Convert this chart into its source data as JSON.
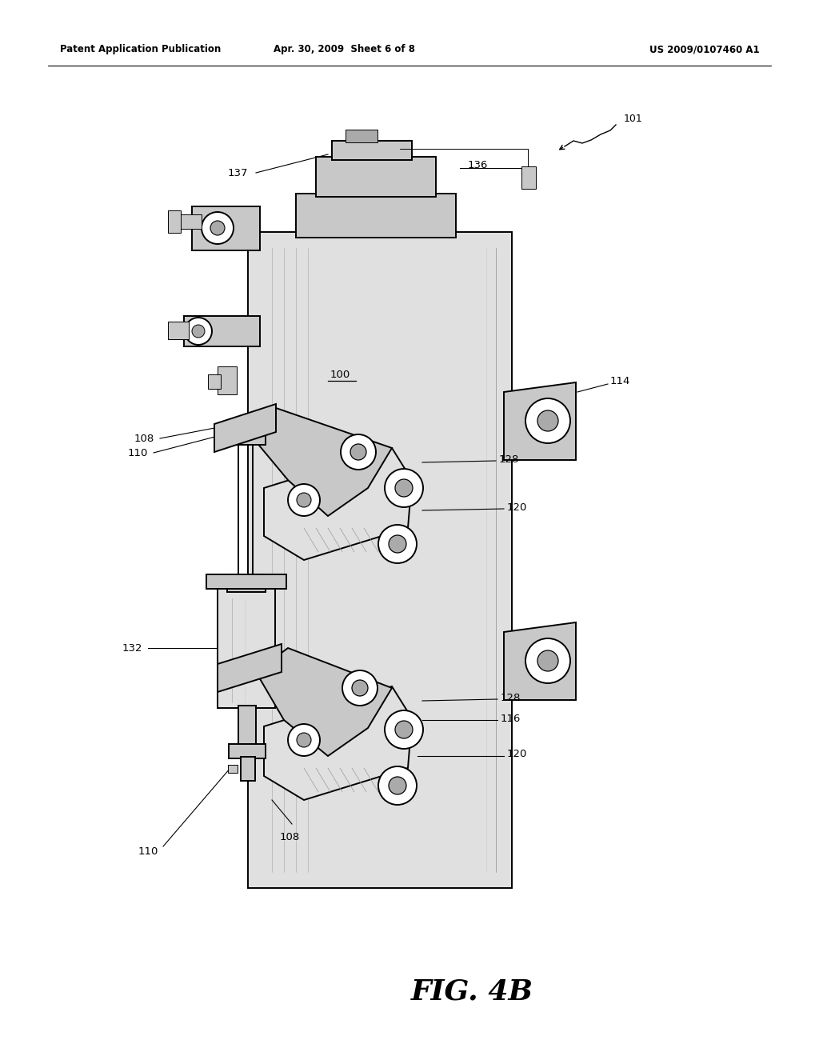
{
  "bg_color": "#ffffff",
  "line_color": "#000000",
  "fig_width": 10.24,
  "fig_height": 13.2,
  "header_left": "Patent Application Publication",
  "header_center": "Apr. 30, 2009  Sheet 6 of 8",
  "header_right": "US 2009/0107460 A1",
  "figure_label": "FIG. 4B",
  "gray_light": "#e0e0e0",
  "gray_mid": "#c8c8c8",
  "gray_dark": "#aaaaaa",
  "lw_main": 1.4,
  "lw_thin": 0.7
}
